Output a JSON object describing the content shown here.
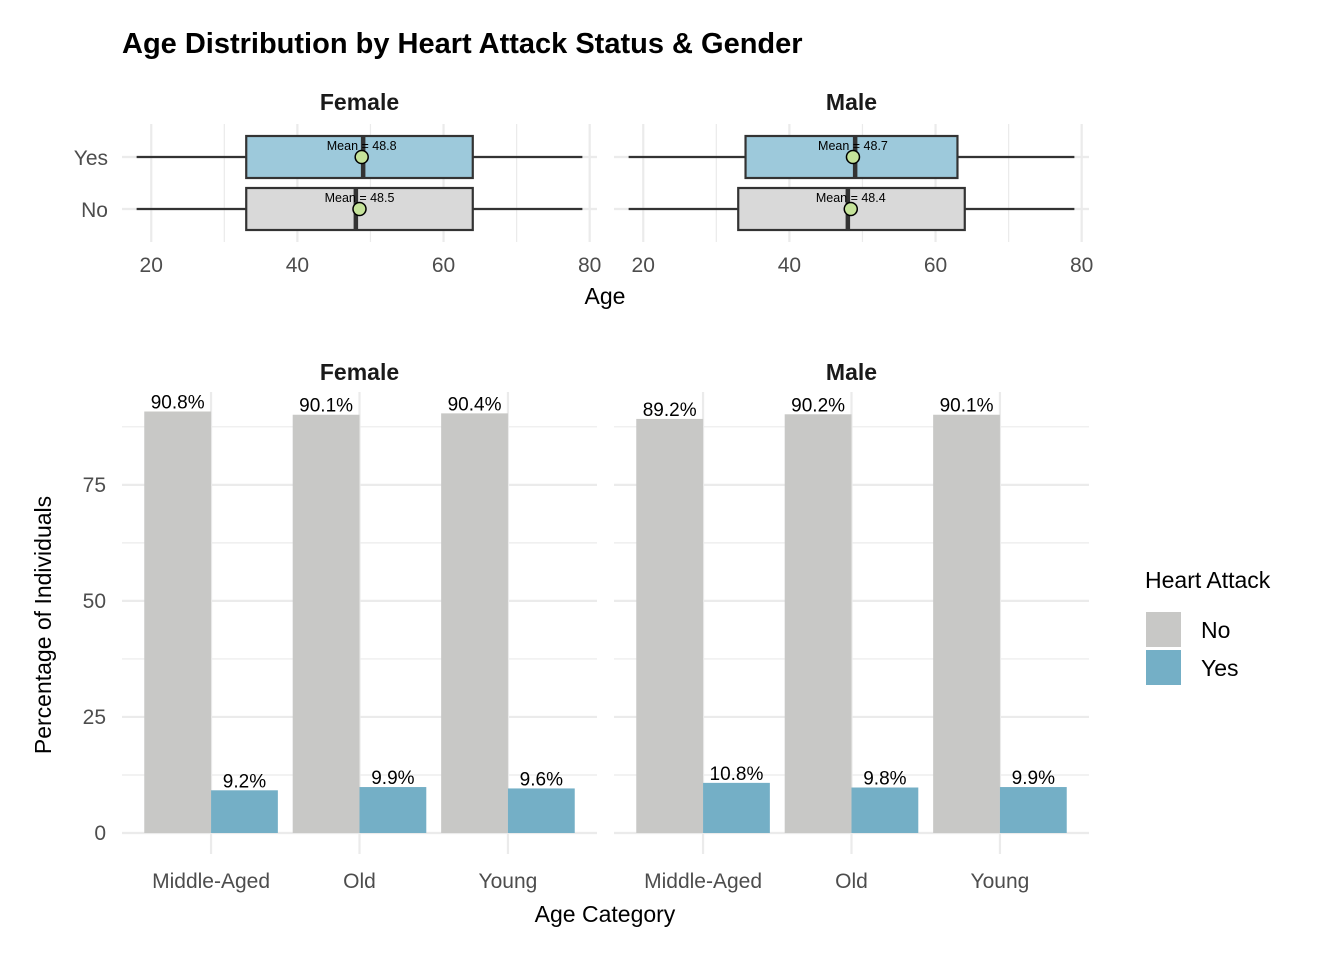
{
  "title": "Age Distribution by Heart Attack Status & Gender",
  "colors": {
    "no": "#C8C8C6",
    "yes": "#74AFC6",
    "box_yes": "#9DC9DB",
    "box_no": "#D9D9D9",
    "mean_point": "#C5E39A",
    "grid": "#EBEBEB",
    "outline": "#333333"
  },
  "chart_data": [
    {
      "type": "boxplot",
      "panels": [
        "Female",
        "Male"
      ],
      "y_categories": [
        "Yes",
        "No"
      ],
      "xlabel": "Age",
      "xlim": [
        16,
        81
      ],
      "x_ticks": [
        20,
        40,
        60,
        80
      ],
      "grid": true,
      "boxes": [
        {
          "panel": "Female",
          "group": "Yes",
          "min": 18,
          "q1": 33,
          "median": 49,
          "q3": 64,
          "max": 79,
          "mean": 48.8,
          "mean_label": "Mean = 48.8"
        },
        {
          "panel": "Female",
          "group": "No",
          "min": 18,
          "q1": 33,
          "median": 48,
          "q3": 64,
          "max": 79,
          "mean": 48.5,
          "mean_label": "Mean = 48.5"
        },
        {
          "panel": "Male",
          "group": "Yes",
          "min": 18,
          "q1": 34,
          "median": 49,
          "q3": 63,
          "max": 79,
          "mean": 48.7,
          "mean_label": "Mean = 48.7"
        },
        {
          "panel": "Male",
          "group": "No",
          "min": 18,
          "q1": 33,
          "median": 48,
          "q3": 64,
          "max": 79,
          "mean": 48.4,
          "mean_label": "Mean = 48.4"
        }
      ]
    },
    {
      "type": "bar",
      "panels": [
        "Female",
        "Male"
      ],
      "categories": [
        "Middle-Aged",
        "Old",
        "Young"
      ],
      "xlabel": "Age Category",
      "ylabel": "Percentage of Individuals",
      "ylim": [
        0,
        95
      ],
      "y_ticks": [
        0,
        25,
        50,
        75
      ],
      "grid": true,
      "legend": {
        "title": "Heart Attack",
        "position": "right",
        "entries": [
          "No",
          "Yes"
        ]
      },
      "series": [
        {
          "name": "No",
          "panel": "Female",
          "values": [
            90.8,
            90.1,
            90.4
          ],
          "labels": [
            "90.8%",
            "90.1%",
            "90.4%"
          ]
        },
        {
          "name": "Yes",
          "panel": "Female",
          "values": [
            9.2,
            9.9,
            9.6
          ],
          "labels": [
            "9.2%",
            "9.9%",
            "9.6%"
          ]
        },
        {
          "name": "No",
          "panel": "Male",
          "values": [
            89.2,
            90.2,
            90.1
          ],
          "labels": [
            "89.2%",
            "90.2%",
            "90.1%"
          ]
        },
        {
          "name": "Yes",
          "panel": "Male",
          "values": [
            10.8,
            9.8,
            9.9
          ],
          "labels": [
            "10.8%",
            "9.8%",
            "9.9%"
          ]
        }
      ]
    }
  ]
}
